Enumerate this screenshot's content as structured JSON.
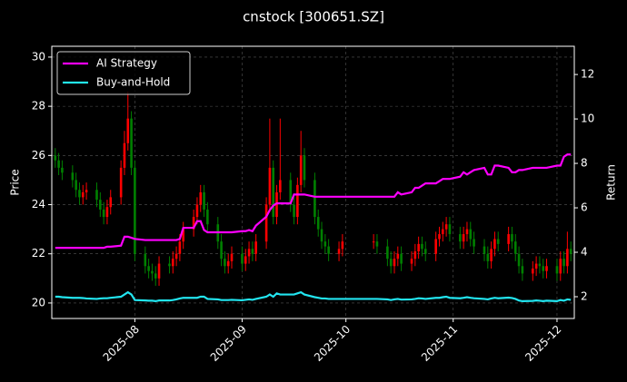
{
  "chart_data": {
    "type": "candlestick",
    "title": "cnstock [300651.SZ]",
    "ylabel": "Price",
    "y2label": "Return",
    "x": [
      "2025-07-09",
      "2025-07-10",
      "2025-07-11",
      "2025-07-14",
      "2025-07-15",
      "2025-07-16",
      "2025-07-17",
      "2025-07-18",
      "2025-07-21",
      "2025-07-22",
      "2025-07-23",
      "2025-07-24",
      "2025-07-25",
      "2025-07-28",
      "2025-07-29",
      "2025-07-30",
      "2025-07-31",
      "2025-08-01",
      "2025-08-04",
      "2025-08-05",
      "2025-08-06",
      "2025-08-07",
      "2025-08-08",
      "2025-08-11",
      "2025-08-12",
      "2025-08-13",
      "2025-08-14",
      "2025-08-15",
      "2025-08-18",
      "2025-08-19",
      "2025-08-20",
      "2025-08-21",
      "2025-08-22",
      "2025-08-25",
      "2025-08-26",
      "2025-08-27",
      "2025-08-28",
      "2025-08-29",
      "2025-09-01",
      "2025-09-02",
      "2025-09-03",
      "2025-09-04",
      "2025-09-05",
      "2025-09-08",
      "2025-09-09",
      "2025-09-10",
      "2025-09-11",
      "2025-09-12",
      "2025-09-15",
      "2025-09-16",
      "2025-09-17",
      "2025-09-18",
      "2025-09-19",
      "2025-09-22",
      "2025-09-23",
      "2025-09-24",
      "2025-09-25",
      "2025-09-26",
      "2025-09-29",
      "2025-09-30",
      "2025-10-09",
      "2025-10-10",
      "2025-10-13",
      "2025-10-14",
      "2025-10-15",
      "2025-10-16",
      "2025-10-17",
      "2025-10-20",
      "2025-10-21",
      "2025-10-22",
      "2025-10-23",
      "2025-10-24",
      "2025-10-27",
      "2025-10-28",
      "2025-10-29",
      "2025-10-30",
      "2025-10-31",
      "2025-11-03",
      "2025-11-04",
      "2025-11-05",
      "2025-11-06",
      "2025-11-07",
      "2025-11-10",
      "2025-11-11",
      "2025-11-12",
      "2025-11-13",
      "2025-11-14",
      "2025-11-17",
      "2025-11-18",
      "2025-11-19",
      "2025-11-20",
      "2025-11-21",
      "2025-11-24",
      "2025-11-25",
      "2025-11-26",
      "2025-11-27",
      "2025-11-28",
      "2025-12-01",
      "2025-12-02",
      "2025-12-03",
      "2025-12-04",
      "2025-12-05"
    ],
    "open": [
      26.0,
      25.8,
      25.5,
      25.3,
      25.0,
      24.6,
      24.3,
      24.5,
      24.6,
      24.2,
      23.8,
      23.5,
      23.9,
      24.3,
      25.5,
      26.5,
      27.5,
      25.5,
      22.0,
      21.5,
      21.3,
      21.2,
      21.0,
      21.6,
      21.5,
      21.8,
      22.0,
      22.5,
      23.0,
      23.5,
      24.0,
      24.5,
      23.8,
      23.2,
      22.5,
      21.8,
      21.5,
      21.7,
      22.0,
      21.6,
      21.9,
      22.2,
      22.0,
      22.5,
      24.0,
      25.5,
      23.5,
      24.5,
      25.0,
      24.0,
      23.5,
      24.8,
      26.0,
      25.0,
      23.5,
      23.0,
      22.5,
      22.3,
      22.0,
      22.2,
      22.5,
      22.5,
      22.3,
      21.8,
      21.5,
      21.8,
      22.0,
      21.6,
      21.8,
      22.1,
      22.4,
      22.2,
      22.0,
      22.6,
      22.8,
      23.0,
      23.2,
      22.8,
      22.5,
      22.8,
      23.0,
      22.6,
      22.3,
      22.0,
      21.7,
      22.2,
      22.6,
      22.4,
      22.8,
      22.5,
      22.0,
      21.5,
      21.2,
      21.4,
      21.6,
      21.5,
      21.3,
      21.5,
      21.2,
      21.8,
      21.5,
      22.2
    ],
    "high": [
      26.3,
      26.1,
      25.8,
      25.6,
      25.3,
      24.9,
      24.8,
      24.9,
      24.9,
      24.5,
      24.1,
      24.2,
      24.6,
      25.8,
      27.0,
      28.6,
      27.8,
      25.8,
      22.3,
      21.8,
      21.6,
      21.5,
      21.9,
      21.9,
      22.1,
      22.3,
      22.8,
      23.3,
      23.8,
      24.3,
      24.8,
      24.8,
      24.1,
      23.5,
      22.8,
      22.1,
      22.0,
      22.3,
      22.3,
      22.2,
      22.5,
      22.5,
      22.8,
      24.3,
      27.5,
      25.8,
      24.8,
      27.5,
      25.3,
      24.3,
      25.1,
      27.0,
      26.3,
      25.3,
      23.8,
      23.3,
      22.8,
      22.6,
      22.5,
      22.8,
      22.8,
      22.8,
      22.6,
      22.1,
      22.1,
      22.3,
      22.3,
      22.1,
      22.4,
      22.7,
      22.7,
      22.5,
      22.9,
      23.1,
      23.3,
      23.5,
      23.5,
      23.1,
      23.1,
      23.3,
      23.3,
      22.9,
      22.6,
      22.3,
      22.5,
      22.9,
      22.9,
      23.1,
      23.1,
      22.8,
      22.3,
      21.8,
      21.7,
      21.9,
      21.9,
      21.8,
      21.8,
      21.8,
      22.1,
      22.1,
      22.9,
      22.5
    ],
    "low": [
      25.5,
      25.2,
      25.0,
      24.7,
      24.3,
      24.0,
      24.0,
      24.2,
      23.9,
      23.5,
      23.2,
      23.2,
      23.6,
      24.0,
      25.2,
      26.2,
      25.2,
      21.7,
      21.2,
      21.0,
      20.9,
      20.7,
      20.7,
      21.2,
      21.2,
      21.5,
      21.7,
      22.2,
      22.7,
      23.2,
      23.7,
      23.5,
      22.9,
      22.2,
      21.5,
      21.2,
      21.2,
      21.4,
      21.3,
      21.3,
      21.6,
      21.7,
      21.7,
      22.2,
      23.7,
      23.2,
      23.2,
      24.2,
      23.7,
      23.2,
      23.2,
      24.5,
      24.7,
      23.2,
      22.7,
      22.2,
      22.0,
      21.7,
      21.7,
      21.9,
      22.2,
      22.0,
      21.5,
      21.2,
      21.2,
      21.5,
      21.3,
      21.3,
      21.5,
      21.8,
      21.9,
      21.7,
      21.7,
      22.3,
      22.5,
      22.7,
      22.5,
      22.2,
      22.2,
      22.5,
      22.3,
      22.0,
      21.7,
      21.4,
      21.4,
      21.9,
      22.1,
      22.1,
      22.2,
      21.7,
      21.2,
      20.9,
      20.9,
      21.1,
      21.2,
      21.0,
      21.0,
      20.9,
      20.9,
      21.2,
      21.2,
      21.7
    ],
    "close": [
      25.8,
      25.5,
      25.3,
      25.0,
      24.6,
      24.3,
      24.5,
      24.6,
      24.2,
      23.8,
      23.5,
      23.9,
      24.3,
      25.5,
      26.5,
      27.5,
      25.5,
      22.0,
      21.5,
      21.3,
      21.2,
      21.0,
      21.6,
      21.5,
      21.8,
      22.0,
      22.5,
      23.0,
      23.5,
      24.0,
      24.5,
      23.8,
      23.2,
      22.5,
      21.8,
      21.5,
      21.7,
      22.0,
      21.6,
      21.9,
      22.2,
      22.0,
      22.5,
      24.0,
      25.5,
      23.5,
      24.5,
      25.0,
      24.0,
      23.5,
      24.8,
      26.0,
      25.0,
      23.5,
      23.0,
      22.5,
      22.3,
      22.0,
      22.2,
      22.5,
      22.5,
      22.3,
      21.8,
      21.5,
      21.8,
      22.0,
      21.6,
      21.8,
      22.1,
      22.4,
      22.2,
      22.0,
      22.6,
      22.8,
      23.0,
      23.2,
      22.8,
      22.5,
      22.8,
      23.0,
      22.6,
      22.3,
      22.0,
      21.7,
      22.2,
      22.6,
      22.4,
      22.8,
      22.5,
      22.0,
      21.5,
      21.2,
      21.4,
      21.6,
      21.5,
      21.3,
      21.5,
      21.2,
      21.8,
      21.5,
      22.2,
      22.0
    ],
    "up_color": "#ff0000",
    "down_color": "#008000",
    "series": [
      {
        "name": "AI Strategy",
        "color": "#ff00ff",
        "axis": "y2",
        "values": [
          4.2,
          4.2,
          4.2,
          4.2,
          4.2,
          4.2,
          4.2,
          4.2,
          4.2,
          4.2,
          4.2,
          4.25,
          4.25,
          4.3,
          4.7,
          4.7,
          4.65,
          4.6,
          4.55,
          4.55,
          4.55,
          4.55,
          4.55,
          4.55,
          4.55,
          4.55,
          4.6,
          5.1,
          5.1,
          5.4,
          5.4,
          5.0,
          4.9,
          4.9,
          4.9,
          4.9,
          4.9,
          4.9,
          4.95,
          4.95,
          5.0,
          4.95,
          5.2,
          5.6,
          5.9,
          6.1,
          6.2,
          6.2,
          6.2,
          6.6,
          6.6,
          6.6,
          6.6,
          6.5,
          6.5,
          6.5,
          6.5,
          6.5,
          6.5,
          6.5,
          6.5,
          6.5,
          6.5,
          6.5,
          6.5,
          6.7,
          6.6,
          6.7,
          6.9,
          6.9,
          7.0,
          7.1,
          7.1,
          7.2,
          7.3,
          7.3,
          7.3,
          7.4,
          7.6,
          7.5,
          7.6,
          7.7,
          7.8,
          7.5,
          7.5,
          7.9,
          7.9,
          7.8,
          7.6,
          7.6,
          7.7,
          7.7,
          7.8,
          7.8,
          7.8,
          7.8,
          7.8,
          7.9,
          7.9,
          8.3,
          8.4,
          8.4
        ]
      },
      {
        "name": "Buy-and-Hold",
        "color": "#22e5f0",
        "axis": "y2",
        "values": [
          2.0,
          2.0,
          1.98,
          1.95,
          1.95,
          1.95,
          1.94,
          1.92,
          1.9,
          1.92,
          1.93,
          1.93,
          1.95,
          2.0,
          2.1,
          2.2,
          2.1,
          1.85,
          1.83,
          1.82,
          1.82,
          1.8,
          1.83,
          1.83,
          1.85,
          1.88,
          1.92,
          1.95,
          1.95,
          1.95,
          2.0,
          2.0,
          1.9,
          1.88,
          1.85,
          1.85,
          1.85,
          1.86,
          1.84,
          1.86,
          1.88,
          1.86,
          1.9,
          2.0,
          2.1,
          2.0,
          2.15,
          2.1,
          2.1,
          2.1,
          2.15,
          2.2,
          2.1,
          1.98,
          1.95,
          1.92,
          1.92,
          1.9,
          1.9,
          1.9,
          1.9,
          1.9,
          1.88,
          1.85,
          1.88,
          1.9,
          1.87,
          1.88,
          1.9,
          1.93,
          1.92,
          1.9,
          1.95,
          1.95,
          1.98,
          2.0,
          1.95,
          1.93,
          1.95,
          1.98,
          1.95,
          1.93,
          1.9,
          1.88,
          1.92,
          1.95,
          1.93,
          1.96,
          1.94,
          1.9,
          1.83,
          1.8,
          1.81,
          1.83,
          1.82,
          1.8,
          1.82,
          1.8,
          1.85,
          1.82,
          1.88,
          1.86
        ]
      }
    ],
    "xlim": [
      "2025-07-08",
      "2025-12-06"
    ],
    "xticks": [
      {
        "value": "2025-08-01",
        "label": "2025-08"
      },
      {
        "value": "2025-09-01",
        "label": "2025-09"
      },
      {
        "value": "2025-10-01",
        "label": "2025-10"
      },
      {
        "value": "2025-11-01",
        "label": "2025-11"
      },
      {
        "value": "2025-12-01",
        "label": "2025-12"
      }
    ],
    "ylim": [
      19.37,
      30.44
    ],
    "yticks": [
      20,
      22,
      24,
      26,
      28,
      30
    ],
    "y2lim": [
      1.02,
      13.27
    ],
    "y2ticks": [
      2,
      4,
      6,
      8,
      10,
      12
    ],
    "grid": true,
    "legend": "upper left"
  }
}
